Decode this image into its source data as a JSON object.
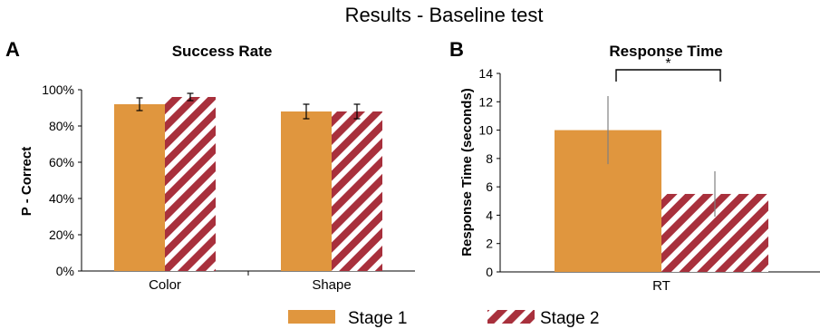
{
  "figure_title": "Results  - Baseline test",
  "colors": {
    "stage1": "#E0963E",
    "stage2": "#A8303C",
    "stripe": "#FFFFFF",
    "axis": "#000000",
    "errorbar": "#808080"
  },
  "legend": {
    "placement": "bottom-center",
    "items": [
      "Stage 1",
      "Stage 2"
    ]
  },
  "chart_data": [
    {
      "panel": "A",
      "type": "bar",
      "title": "Success Rate",
      "xlabel": "",
      "ylabel": "P - Correct",
      "ylim": [
        0,
        100
      ],
      "yticks": [
        "0%",
        "20%",
        "40%",
        "60%",
        "80%",
        "100%"
      ],
      "categories": [
        "Color",
        "Shape"
      ],
      "series": [
        {
          "name": "Stage 1",
          "values": [
            92,
            88
          ],
          "errors": [
            3.5,
            4
          ]
        },
        {
          "name": "Stage 2",
          "values": [
            96,
            88
          ],
          "errors": [
            2,
            4
          ]
        }
      ],
      "grid": false
    },
    {
      "panel": "B",
      "type": "bar",
      "title": "Response Time",
      "xlabel": "",
      "ylabel": "Response Time (seconds)",
      "ylim": [
        0,
        14
      ],
      "yticks": [
        "0",
        "2",
        "4",
        "6",
        "8",
        "10",
        "12",
        "14"
      ],
      "categories": [
        "RT"
      ],
      "series": [
        {
          "name": "Stage 1",
          "values": [
            10
          ],
          "errors": [
            2.4
          ]
        },
        {
          "name": "Stage 2",
          "values": [
            5.5
          ],
          "errors": [
            1.6
          ]
        }
      ],
      "annotation": "*",
      "grid": false
    }
  ]
}
